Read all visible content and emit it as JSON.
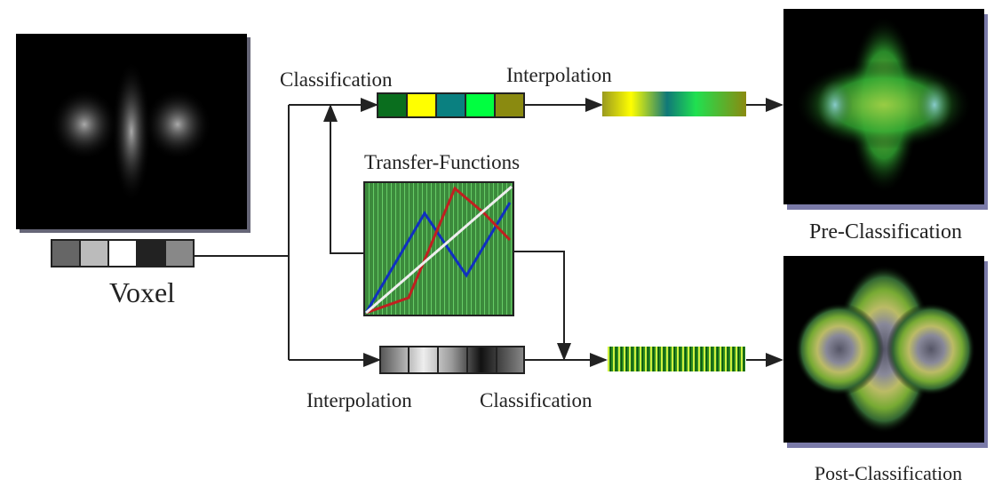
{
  "voxel": {
    "label": "Voxel"
  },
  "top_path": {
    "step1": "Classification",
    "step2": "Interpolation"
  },
  "transfer_functions": {
    "label": "Transfer-Functions"
  },
  "bottom_path": {
    "step1": "Interpolation",
    "step2": "Classification"
  },
  "outputs": {
    "pre": "Pre-Classification",
    "post": "Post-Classification"
  }
}
